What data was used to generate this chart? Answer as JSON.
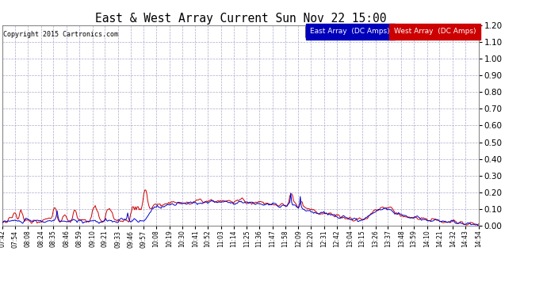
{
  "title": "East & West Array Current Sun Nov 22 15:00",
  "copyright": "Copyright 2015 Cartronics.com",
  "east_label": "East Array  (DC Amps)",
  "west_label": "West Array  (DC Amps)",
  "east_color": "#0000cc",
  "west_color": "#cc0000",
  "ylim": [
    0,
    1.2
  ],
  "yticks": [
    0.0,
    0.1,
    0.2,
    0.3,
    0.4,
    0.5,
    0.6,
    0.7,
    0.8,
    0.9,
    1.0,
    1.1,
    1.2
  ],
  "fig_bg": "#ffffff",
  "plot_bg": "#ffffff",
  "grid_color": "#aaaacc",
  "xtick_labels": [
    "07:42",
    "07:54",
    "08:08",
    "08:24",
    "08:35",
    "08:46",
    "08:59",
    "09:10",
    "09:21",
    "09:33",
    "09:46",
    "09:57",
    "10:08",
    "10:19",
    "10:30",
    "10:41",
    "10:52",
    "11:03",
    "11:14",
    "11:25",
    "11:36",
    "11:47",
    "11:58",
    "12:09",
    "12:20",
    "12:31",
    "12:42",
    "13:04",
    "13:15",
    "13:26",
    "13:37",
    "13:48",
    "13:59",
    "14:10",
    "14:21",
    "14:32",
    "14:43",
    "14:54"
  ],
  "n_points": 500
}
